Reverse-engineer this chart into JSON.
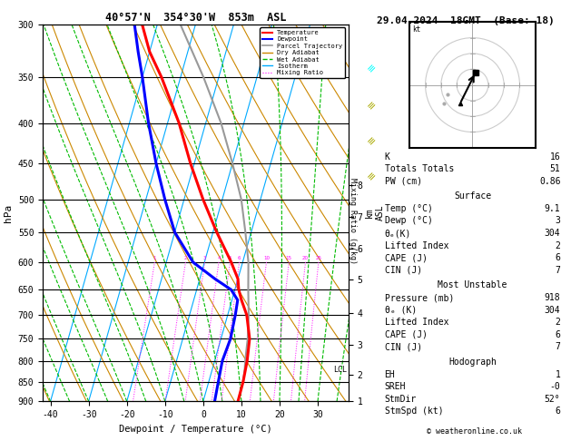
{
  "title_left": "40°57'N  354°30'W  853m  ASL",
  "title_right": "29.04.2024  18GMT  (Base: 18)",
  "xlabel": "Dewpoint / Temperature (°C)",
  "ylabel_left": "hPa",
  "pressure_levels": [
    300,
    350,
    400,
    450,
    500,
    550,
    600,
    650,
    700,
    750,
    800,
    850,
    900
  ],
  "temp_xlim": [
    -42,
    38
  ],
  "temp_color": "#ff0000",
  "dewp_color": "#0000ff",
  "parcel_color": "#999999",
  "dry_adiabat_color": "#cc8800",
  "wet_adiabat_color": "#00bb00",
  "isotherm_color": "#00aaff",
  "mixing_ratio_color": "#ff00ff",
  "background": "#ffffff",
  "lcl_label": "LCL",
  "mixing_ratio_values": [
    1,
    2,
    3,
    4,
    5,
    6,
    10,
    15,
    20,
    25
  ],
  "km_ticks": [
    1,
    2,
    3,
    4,
    5,
    6,
    7,
    8
  ],
  "km_pressures": [
    950,
    875,
    800,
    725,
    655,
    595,
    540,
    490
  ],
  "temp_profile_p": [
    300,
    325,
    350,
    400,
    450,
    500,
    550,
    600,
    630,
    650,
    670,
    700,
    750,
    800,
    850,
    900
  ],
  "temp_profile_t": [
    -44,
    -40,
    -35,
    -27,
    -21,
    -15,
    -9,
    -3,
    0,
    1,
    2.5,
    5,
    7.5,
    8.5,
    9,
    9.1
  ],
  "dewp_profile_p": [
    300,
    325,
    350,
    400,
    450,
    500,
    550,
    600,
    630,
    650,
    670,
    700,
    750,
    800,
    850,
    900
  ],
  "dewp_profile_t": [
    -46,
    -43,
    -40,
    -35,
    -30,
    -25,
    -20,
    -13,
    -6,
    -1,
    1.5,
    2,
    2.5,
    2,
    2.5,
    3
  ],
  "parcel_profile_p": [
    850,
    820,
    800,
    750,
    700,
    650,
    600,
    550,
    500,
    450,
    400,
    350,
    300
  ],
  "parcel_profile_t": [
    9.0,
    8.5,
    8.0,
    7.0,
    5.5,
    3.5,
    1.5,
    -1.5,
    -5,
    -10,
    -16,
    -24,
    -34
  ],
  "lcl_pressure": 820,
  "skew": 28,
  "p_min": 300,
  "p_max": 900,
  "info_K": 16,
  "info_TT": 51,
  "info_PW": 0.86,
  "surface_temp": 9.1,
  "surface_dewp": 3,
  "surface_theta_e": 304,
  "surface_LI": 2,
  "surface_CAPE": 6,
  "surface_CIN": 7,
  "mu_pressure": 918,
  "mu_theta_e": 304,
  "mu_LI": 2,
  "mu_CAPE": 6,
  "mu_CIN": 7,
  "hodo_EH": 1,
  "hodo_SREH": "-0",
  "hodo_StmDir": "52°",
  "hodo_StmSpd": 6,
  "copyright": "© weatheronline.co.uk"
}
